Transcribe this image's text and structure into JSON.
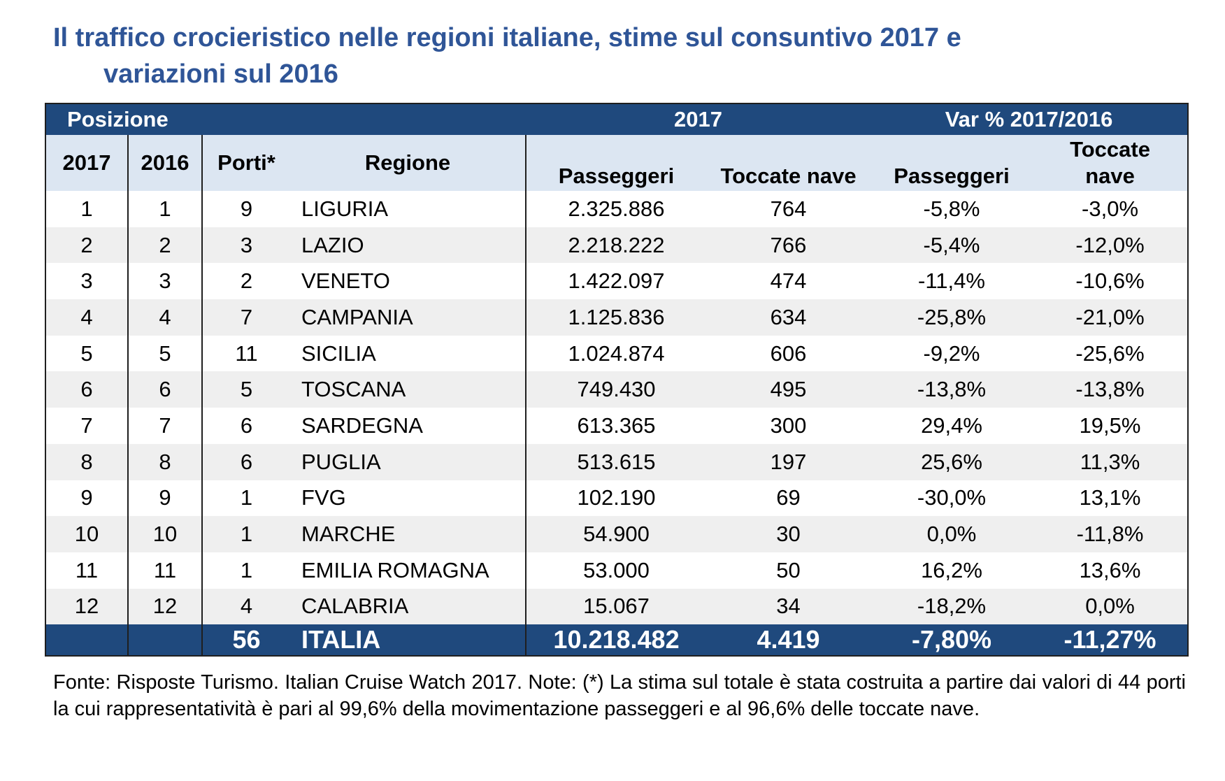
{
  "title": {
    "line1": "Il traffico crocieristico nelle regioni italiane, stime sul consuntivo 2017 e",
    "line2": "variazioni sul 2016"
  },
  "table": {
    "band": {
      "posizione": "Posizione",
      "year": "2017",
      "var": "Var % 2017/2016"
    },
    "headers": {
      "y2017": "2017",
      "y2016": "2016",
      "porti": "Porti*",
      "regione": "Regione",
      "passeggeri": "Passeggeri",
      "toccate": "Toccate nave",
      "var_passeggeri": "Passeggeri",
      "var_toccate_1": "Toccate",
      "var_toccate_2": "nave"
    },
    "rows": [
      {
        "p2017": "1",
        "p2016": "1",
        "porti": "9",
        "regione": "LIGURIA",
        "passeggeri": "2.325.886",
        "toccate": "764",
        "var_pass": "-5,8%",
        "var_tocc": "-3,0%"
      },
      {
        "p2017": "2",
        "p2016": "2",
        "porti": "3",
        "regione": "LAZIO",
        "passeggeri": "2.218.222",
        "toccate": "766",
        "var_pass": "-5,4%",
        "var_tocc": "-12,0%"
      },
      {
        "p2017": "3",
        "p2016": "3",
        "porti": "2",
        "regione": "VENETO",
        "passeggeri": "1.422.097",
        "toccate": "474",
        "var_pass": "-11,4%",
        "var_tocc": "-10,6%"
      },
      {
        "p2017": "4",
        "p2016": "4",
        "porti": "7",
        "regione": "CAMPANIA",
        "passeggeri": "1.125.836",
        "toccate": "634",
        "var_pass": "-25,8%",
        "var_tocc": "-21,0%"
      },
      {
        "p2017": "5",
        "p2016": "5",
        "porti": "11",
        "regione": "SICILIA",
        "passeggeri": "1.024.874",
        "toccate": "606",
        "var_pass": "-9,2%",
        "var_tocc": "-25,6%"
      },
      {
        "p2017": "6",
        "p2016": "6",
        "porti": "5",
        "regione": "TOSCANA",
        "passeggeri": "749.430",
        "toccate": "495",
        "var_pass": "-13,8%",
        "var_tocc": "-13,8%"
      },
      {
        "p2017": "7",
        "p2016": "7",
        "porti": "6",
        "regione": "SARDEGNA",
        "passeggeri": "613.365",
        "toccate": "300",
        "var_pass": "29,4%",
        "var_tocc": "19,5%"
      },
      {
        "p2017": "8",
        "p2016": "8",
        "porti": "6",
        "regione": "PUGLIA",
        "passeggeri": "513.615",
        "toccate": "197",
        "var_pass": "25,6%",
        "var_tocc": "11,3%"
      },
      {
        "p2017": "9",
        "p2016": "9",
        "porti": "1",
        "regione": "FVG",
        "passeggeri": "102.190",
        "toccate": "69",
        "var_pass": "-30,0%",
        "var_tocc": "13,1%"
      },
      {
        "p2017": "10",
        "p2016": "10",
        "porti": "1",
        "regione": "MARCHE",
        "passeggeri": "54.900",
        "toccate": "30",
        "var_pass": "0,0%",
        "var_tocc": "-11,8%"
      },
      {
        "p2017": "11",
        "p2016": "11",
        "porti": "1",
        "regione": "EMILIA ROMAGNA",
        "passeggeri": "53.000",
        "toccate": "50",
        "var_pass": "16,2%",
        "var_tocc": "13,6%"
      },
      {
        "p2017": "12",
        "p2016": "12",
        "porti": "4",
        "regione": "CALABRIA",
        "passeggeri": "15.067",
        "toccate": "34",
        "var_pass": "-18,2%",
        "var_tocc": "0,0%"
      }
    ],
    "total": {
      "porti": "56",
      "regione": "ITALIA",
      "passeggeri": "10.218.482",
      "toccate": "4.419",
      "var_pass": "-7,80%",
      "var_tocc": "-11,27%"
    }
  },
  "note": "Fonte: Risposte Turismo. Italian Cruise Watch 2017. Note: (*) La stima sul totale è stata costruita a partire dai valori di 44 porti la cui rappresentatività è pari al 99,6% della movimentazione passeggeri e al 96,6% delle toccate nave.",
  "colors": {
    "title": "#2f5597",
    "band": "#1f497d",
    "header_bg": "#dce6f2",
    "stripe": "#f2f2f2"
  }
}
